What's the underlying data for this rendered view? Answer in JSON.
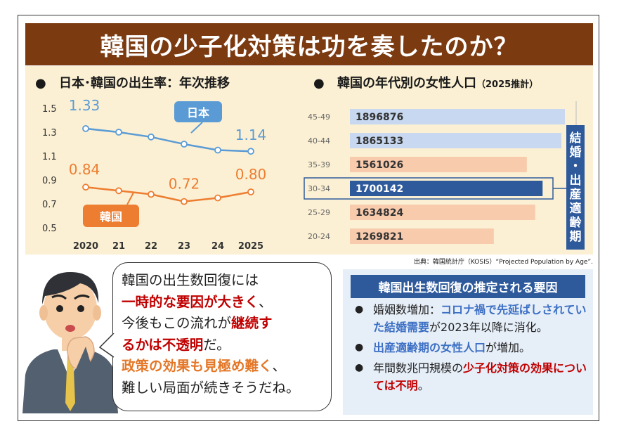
{
  "title": "韓国の少子化対策は功を奏したのか？",
  "left_section": {
    "bullet": "●",
    "title": "日本･韓国の出生率：年次推移"
  },
  "right_section": {
    "bullet": "●",
    "title": "韓国の年代別の女性人口",
    "title_note": "（2025推計）",
    "vertical_label": [
      "結",
      "婚",
      "・",
      "出",
      "産",
      "適",
      "齢",
      "期"
    ]
  },
  "chart_data": [
    {
      "type": "line",
      "title": "日本･韓国の出生率：年次推移",
      "x": [
        "2020",
        "21",
        "22",
        "23",
        "24",
        "2025"
      ],
      "ylim": [
        0.5,
        1.5
      ],
      "yticks": [
        "1.5",
        "1.3",
        "1.1",
        "0.9",
        "0.7",
        "0.5"
      ],
      "grid": false,
      "series": [
        {
          "name": "日本",
          "color": "#5b9bd5",
          "values": [
            1.33,
            1.3,
            1.26,
            1.2,
            1.15,
            1.14
          ],
          "labels": [
            {
              "index": 0,
              "text": "1.33"
            },
            {
              "index": 5,
              "text": "1.14"
            }
          ]
        },
        {
          "name": "韓国",
          "color": "#ed7d31",
          "values": [
            0.84,
            0.81,
            0.78,
            0.72,
            0.75,
            0.8
          ],
          "labels": [
            {
              "index": 0,
              "text": "0.84"
            },
            {
              "index": 3,
              "text": "0.72"
            },
            {
              "index": 5,
              "text": "0.80"
            }
          ]
        }
      ]
    },
    {
      "type": "bar",
      "title": "韓国の年代別の女性人口",
      "orientation": "horizontal",
      "categories": [
        "45-49",
        "40-44",
        "35-39",
        "30-34",
        "25-29",
        "20-24"
      ],
      "values": [
        1896876,
        1865133,
        1561026,
        1700142,
        1634824,
        1269821
      ],
      "value_labels": [
        "1896876",
        "1865133",
        "1561026",
        "1700142",
        "1634824",
        "1269821"
      ],
      "bar_colors": [
        "#c7d8f0",
        "#c7d8f0",
        "#f8cbad",
        "#2e5a9c",
        "#f8cbad",
        "#f8cbad"
      ],
      "highlight_index": 3
    }
  ],
  "source": "出典：韓国統計庁（KOSIS）“Projected Population by Age”.",
  "speech": [
    [
      {
        "t": "韓国の出生数回復には",
        "s": "n"
      }
    ],
    [
      {
        "t": "一時的な要因が大きく",
        "s": "red"
      },
      {
        "t": "、",
        "s": "n"
      }
    ],
    [
      {
        "t": "今後もこの流れが",
        "s": "n"
      },
      {
        "t": "継続す",
        "s": "red"
      }
    ],
    [
      {
        "t": "るかは不透明",
        "s": "red"
      },
      {
        "t": "だ。",
        "s": "n"
      }
    ],
    [
      {
        "t": "政策の効果も見極め難く",
        "s": "orange"
      },
      {
        "t": "、",
        "s": "n"
      }
    ],
    [
      {
        "t": "難しい局面が続きそうだね。",
        "s": "n"
      }
    ]
  ],
  "factors": {
    "heading": "韓国出生数回復の推定される要因",
    "items": [
      [
        {
          "t": "婚姻数増加：",
          "s": "n"
        },
        {
          "t": "コロナ禍で先延ばしされていた結婚需要",
          "s": "blue"
        },
        {
          "t": "が2023年以降に消化。",
          "s": "n"
        }
      ],
      [
        {
          "t": "出産適齢期の女性人口",
          "s": "blue"
        },
        {
          "t": "が増加。",
          "s": "n"
        }
      ],
      [
        {
          "t": "年間数兆円規模の",
          "s": "n"
        },
        {
          "t": "少子化対策の効果については不明",
          "s": "red"
        },
        {
          "t": "。",
          "s": "n"
        }
      ]
    ]
  },
  "illustration": "businessman-thinking"
}
